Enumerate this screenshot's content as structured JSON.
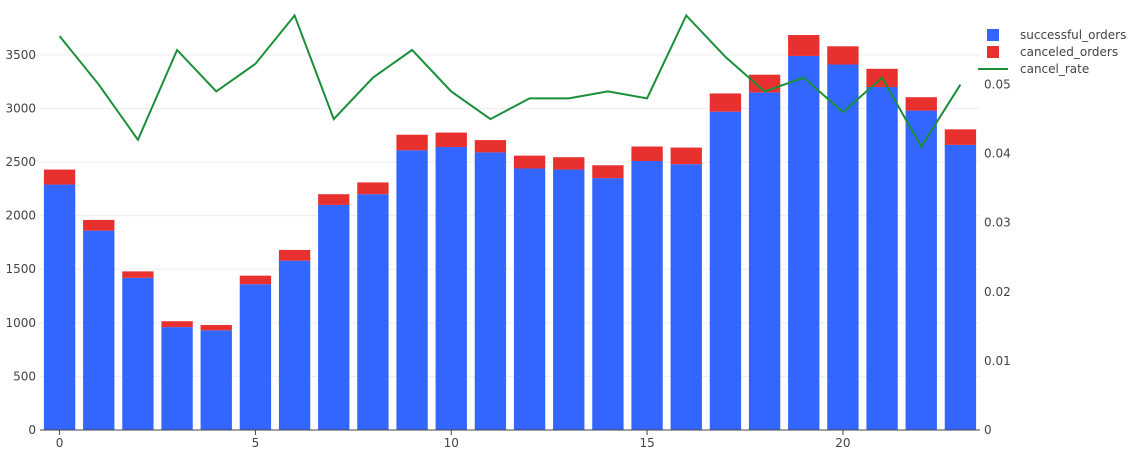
{
  "chart_data": {
    "type": "bar",
    "barmode": "stack",
    "x": [
      0,
      1,
      2,
      3,
      4,
      5,
      6,
      7,
      8,
      9,
      10,
      11,
      12,
      13,
      14,
      15,
      16,
      17,
      18,
      19,
      20,
      21,
      22,
      23
    ],
    "series": [
      {
        "name": "successful_orders",
        "type": "bar",
        "axis": "left",
        "color": "#3366ff",
        "values": [
          2290,
          1860,
          1420,
          960,
          930,
          1360,
          1580,
          2100,
          2200,
          2610,
          2640,
          2590,
          2440,
          2430,
          2350,
          2510,
          2480,
          2970,
          3150,
          3490,
          3410,
          3200,
          2980,
          2660
        ]
      },
      {
        "name": "canceled_orders",
        "type": "bar",
        "axis": "left",
        "color": "#e8312f",
        "values": [
          140,
          100,
          60,
          55,
          50,
          80,
          100,
          100,
          110,
          145,
          135,
          115,
          120,
          115,
          120,
          135,
          155,
          170,
          165,
          195,
          170,
          170,
          125,
          145
        ]
      },
      {
        "name": "cancel_rate",
        "type": "line",
        "axis": "right",
        "color": "#1a8f3a",
        "values": [
          0.057,
          0.05,
          0.042,
          0.055,
          0.049,
          0.053,
          0.06,
          0.045,
          0.051,
          0.055,
          0.049,
          0.045,
          0.048,
          0.048,
          0.049,
          0.048,
          0.06,
          0.054,
          0.049,
          0.051,
          0.046,
          0.051,
          0.041,
          0.05
        ]
      }
    ],
    "xaxis": {
      "range": [
        -0.5,
        23.5
      ],
      "ticks": [
        0,
        5,
        10,
        15,
        20
      ]
    },
    "yaxis_left": {
      "range": [
        0,
        3900
      ],
      "ticks": [
        0,
        500,
        1000,
        1500,
        2000,
        2500,
        3000,
        3500
      ]
    },
    "yaxis_right": {
      "range": [
        0,
        0.0605
      ],
      "ticks": [
        0,
        0.01,
        0.02,
        0.03,
        0.04,
        0.05
      ]
    },
    "grid": true,
    "legend_position": "top-right",
    "title": "",
    "xlabel": "",
    "ylabel": ""
  },
  "colors": {
    "grid": "#eeeeee",
    "axis": "#444444",
    "text": "#444444"
  }
}
